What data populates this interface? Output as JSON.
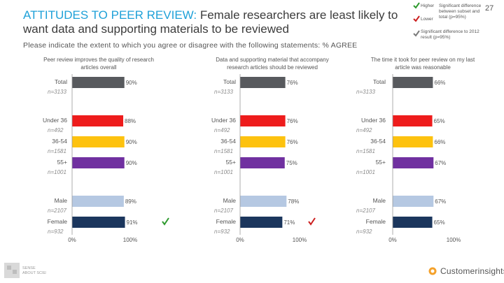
{
  "header": {
    "title_accent": "ATTITUDES TO PEER REVIEW:",
    "title_rest": " Female researchers are least likely to want data and supporting materials to be reviewed",
    "page_number": "27"
  },
  "subtitle": "Please indicate the extent to which you agree or disagree with the following statements: % AGREE",
  "legend": {
    "higher": "Higher",
    "lower": "Lower",
    "sig_diff_subset": "Significant difference between subset and total (p=95%)",
    "sig_diff_2012": "Significant difference to 2012 result (p=95%)",
    "colors": {
      "higher": "#2e9a2e",
      "lower": "#cc1f1f",
      "vs2012": "#7a7a7a"
    }
  },
  "footer": {
    "logo_left": "SENSE ABOUT SCIENCE",
    "logo_right": "Customerinsights"
  },
  "chart_data": [
    {
      "type": "bar",
      "orientation": "horizontal",
      "title": "Peer review improves the quality of research articles overall",
      "axis_ticks": [
        "0%",
        "100%"
      ],
      "xlim": [
        0,
        100
      ],
      "categories": [
        "Total",
        "Under 36",
        "36-54",
        "55+",
        "Male",
        "Female"
      ],
      "bases": [
        "n=3133",
        "n=492",
        "n=1581",
        "n=1001",
        "n=2107",
        "n=932"
      ],
      "values": [
        90,
        88,
        90,
        90,
        89,
        91
      ],
      "value_labels": [
        "90%",
        "88%",
        "90%",
        "90%",
        "89%",
        "91%"
      ],
      "colors": [
        "#585a5e",
        "#ee1c1c",
        "#fdc20f",
        "#7030a0",
        "#b5c8e2",
        "#1b365d"
      ],
      "significance": [
        null,
        null,
        null,
        null,
        null,
        "higher"
      ]
    },
    {
      "type": "bar",
      "orientation": "horizontal",
      "title": "Data and supporting material that accompany research articles should be reviewed",
      "axis_ticks": [
        "0%",
        "100%"
      ],
      "xlim": [
        0,
        100
      ],
      "categories": [
        "Total",
        "Under 36",
        "36-54",
        "55+",
        "Male",
        "Female"
      ],
      "bases": [
        "n=3133",
        "n=492",
        "n=1581",
        "n=1001",
        "n=2107",
        "n=932"
      ],
      "values": [
        76,
        76,
        76,
        75,
        78,
        71
      ],
      "value_labels": [
        "76%",
        "76%",
        "76%",
        "75%",
        "78%",
        "71%"
      ],
      "colors": [
        "#585a5e",
        "#ee1c1c",
        "#fdc20f",
        "#7030a0",
        "#b5c8e2",
        "#1b365d"
      ],
      "significance": [
        null,
        null,
        null,
        null,
        null,
        "lower"
      ]
    },
    {
      "type": "bar",
      "orientation": "horizontal",
      "title": "The time it took for peer review on my last article was reasonable",
      "axis_ticks": [
        "0%",
        "100%"
      ],
      "xlim": [
        0,
        100
      ],
      "categories": [
        "Total",
        "Under 36",
        "36-54",
        "55+",
        "Male",
        "Female"
      ],
      "bases": [
        "n=3133",
        "n=492",
        "n=1581",
        "n=1001",
        "n=2107",
        "n=932"
      ],
      "values": [
        66,
        65,
        66,
        67,
        67,
        65
      ],
      "value_labels": [
        "66%",
        "65%",
        "66%",
        "67%",
        "67%",
        "65%"
      ],
      "colors": [
        "#585a5e",
        "#ee1c1c",
        "#fdc20f",
        "#7030a0",
        "#b5c8e2",
        "#1b365d"
      ],
      "significance": [
        null,
        null,
        null,
        null,
        null,
        null
      ]
    }
  ]
}
